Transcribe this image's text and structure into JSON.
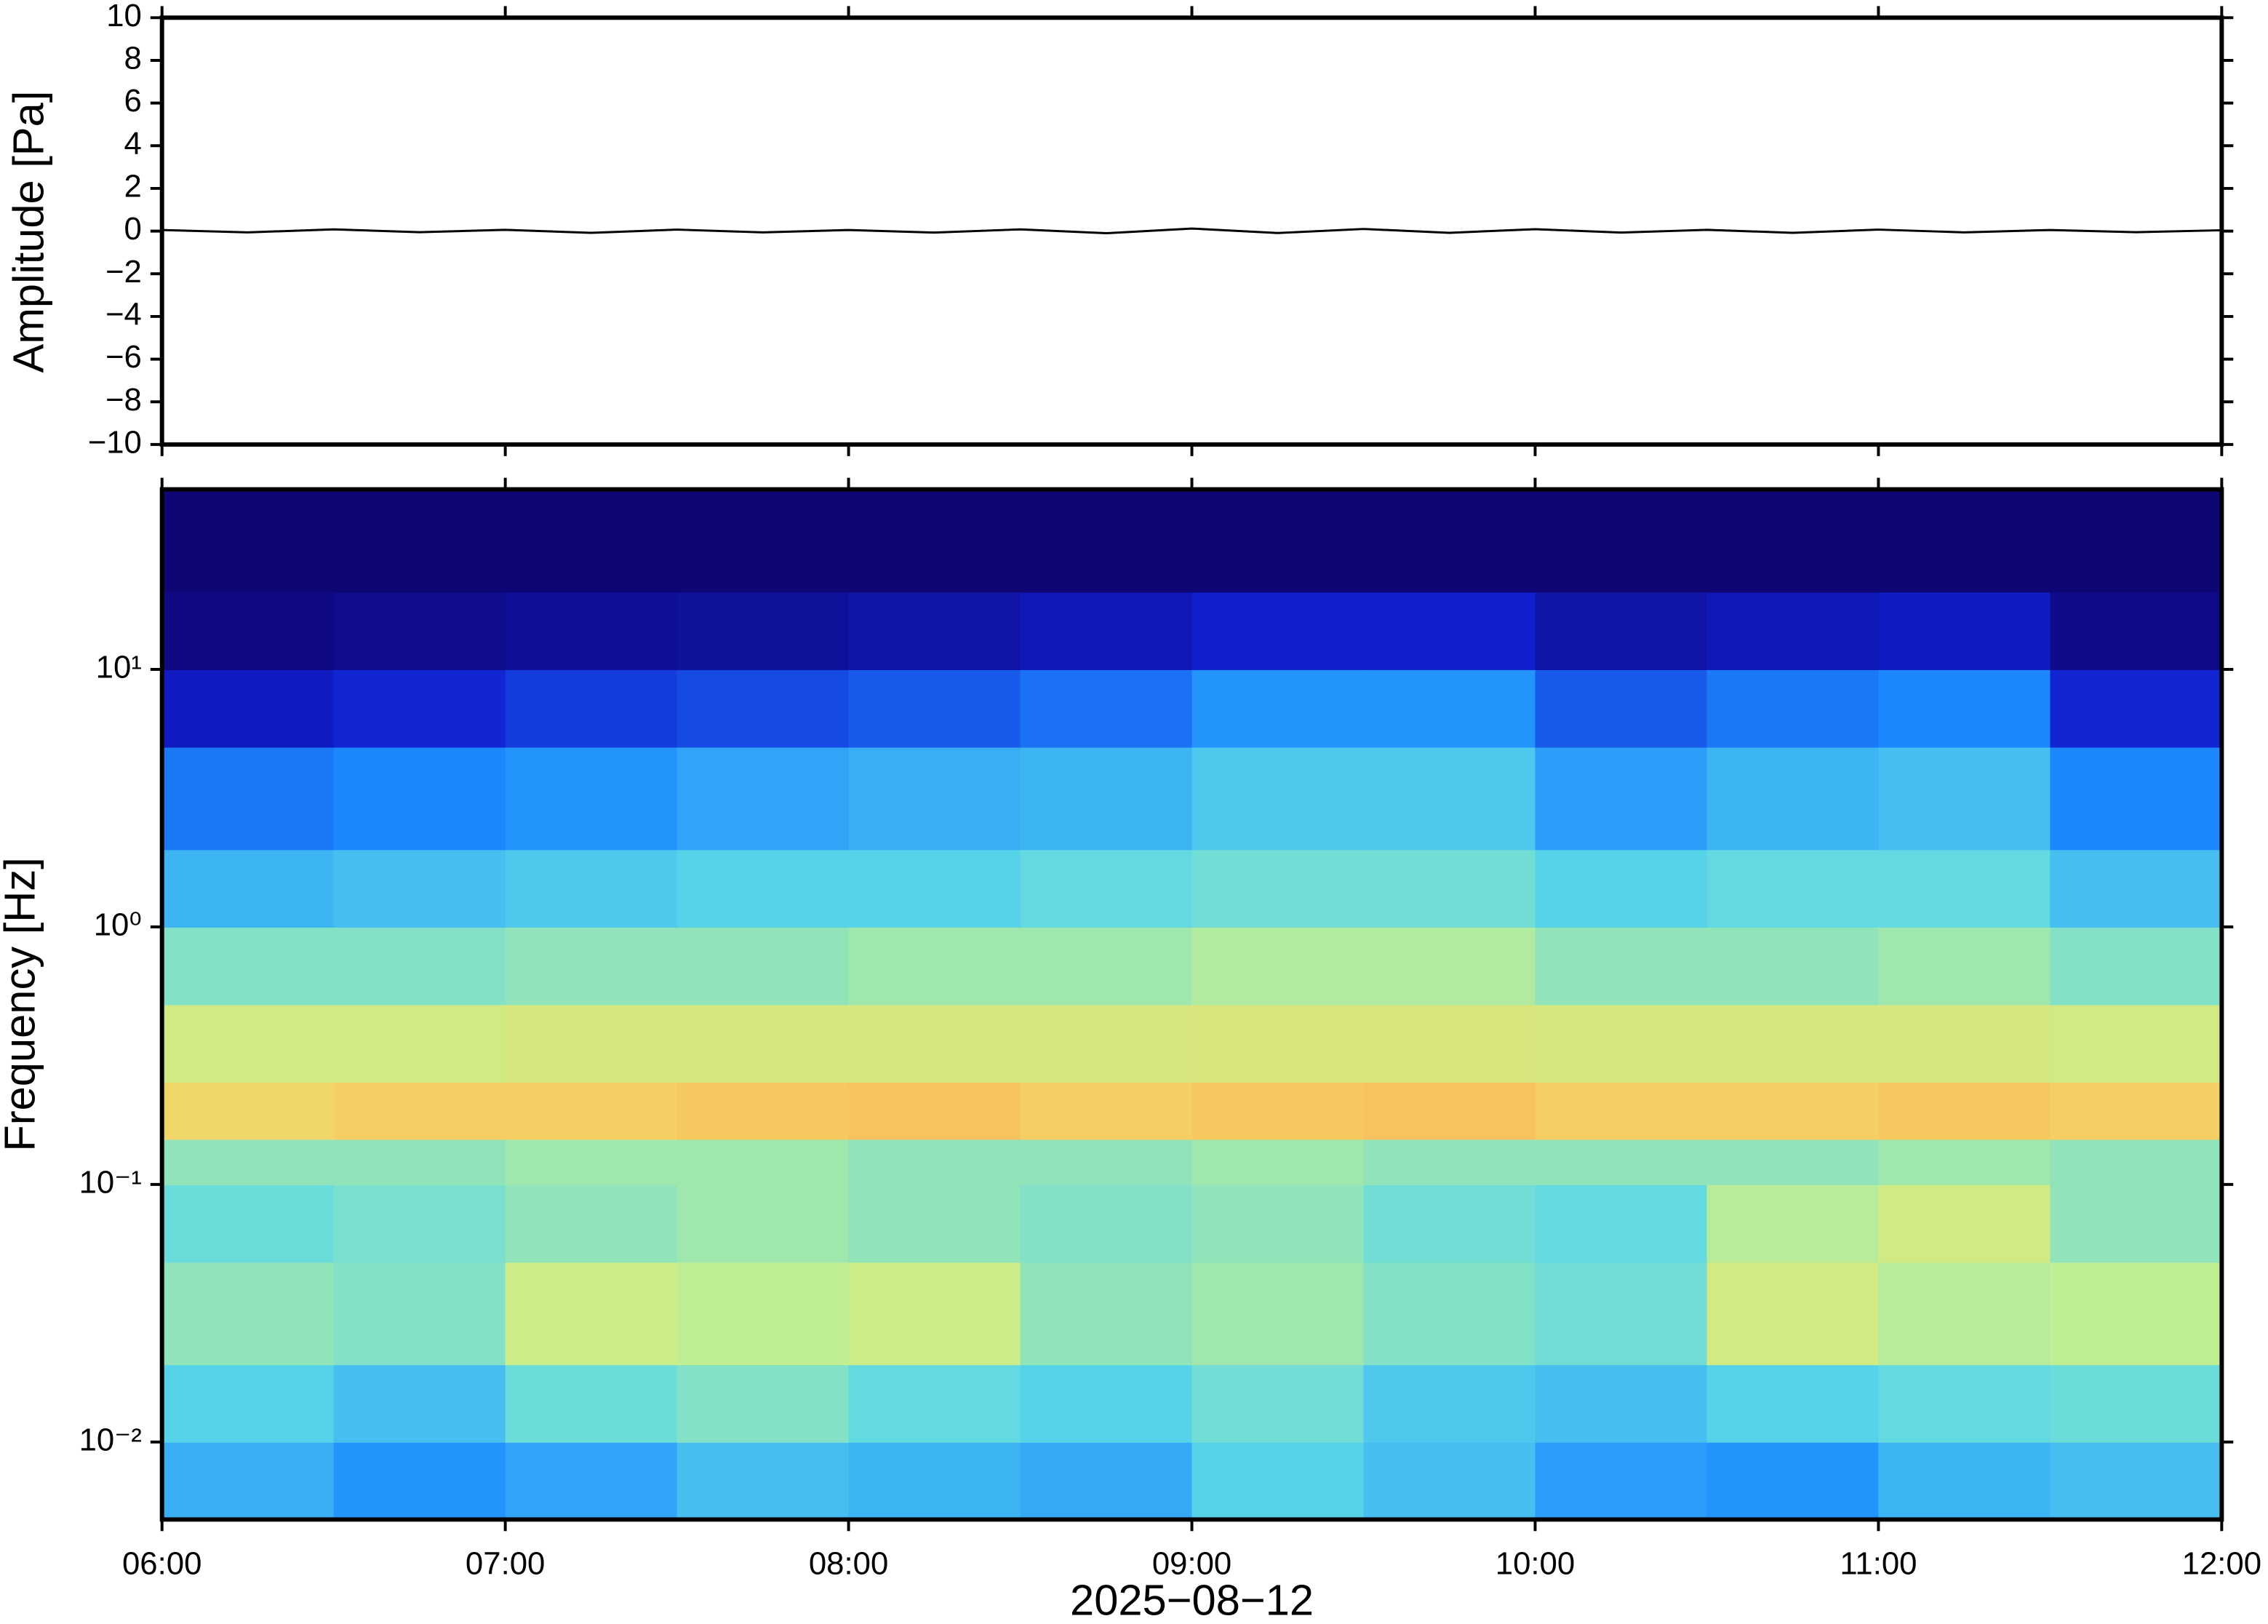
{
  "chart_data": [
    {
      "type": "line",
      "ylabel": "Amplitude [Pa]",
      "xlim": [
        6,
        12
      ],
      "xticks": [
        6,
        7,
        8,
        9,
        10,
        11,
        12
      ],
      "ylim": [
        -10,
        10
      ],
      "yticks": [
        {
          "value": -10,
          "label": "−10"
        },
        {
          "value": -8,
          "label": "−8"
        },
        {
          "value": -6,
          "label": "−6"
        },
        {
          "value": -4,
          "label": "−4"
        },
        {
          "value": -2,
          "label": "−2"
        },
        0,
        2,
        4,
        6,
        8,
        10
      ],
      "color": "#000000",
      "x": [
        6,
        6.25,
        6.5,
        6.75,
        7,
        7.25,
        7.5,
        7.75,
        8,
        8.25,
        8.5,
        8.75,
        9,
        9.25,
        9.5,
        9.75,
        10,
        10.25,
        10.5,
        10.75,
        11,
        11.25,
        11.5,
        11.75,
        12
      ],
      "values": [
        0.05,
        -0.06,
        0.08,
        -0.05,
        0.06,
        -0.08,
        0.07,
        -0.06,
        0.05,
        -0.07,
        0.08,
        -0.1,
        0.12,
        -0.09,
        0.1,
        -0.08,
        0.09,
        -0.07,
        0.06,
        -0.08,
        0.07,
        -0.06,
        0.05,
        -0.05,
        0.04
      ]
    },
    {
      "type": "heatmap",
      "ylabel": "Frequency [Hz]",
      "xlabel": "2025−08−12",
      "xlim": [
        6,
        12
      ],
      "xticks": [
        {
          "value": 6,
          "label": "06:00"
        },
        {
          "value": 7,
          "label": "07:00"
        },
        {
          "value": 8,
          "label": "08:00"
        },
        {
          "value": 9,
          "label": "09:00"
        },
        {
          "value": 10,
          "label": "10:00"
        },
        {
          "value": 11,
          "label": "11:00"
        },
        {
          "value": 12,
          "label": "12:00"
        }
      ],
      "ylim": [
        0.005,
        50
      ],
      "log_y": true,
      "yticks": [
        {
          "value": 0.01,
          "label": "10⁻²"
        },
        {
          "value": 0.1,
          "label": "10⁻¹"
        },
        {
          "value": 1,
          "label": "10⁰"
        },
        {
          "value": 10,
          "label": "10¹"
        }
      ],
      "x_bins": [
        6,
        6.5,
        7,
        7.5,
        8,
        8.5,
        9,
        9.5,
        10,
        10.5,
        11,
        11.5,
        12
      ],
      "y_bins": [
        0.005,
        0.01,
        0.02,
        0.05,
        0.1,
        0.15,
        0.25,
        0.5,
        1,
        2,
        5,
        10,
        20,
        50
      ],
      "zlim": [
        0,
        1
      ],
      "colormap": [
        "#0f0675",
        "#1020d0",
        "#1e8cff",
        "#5ad8e8",
        "#c8f08c",
        "#f5d264",
        "#ff8040",
        "#d01010"
      ],
      "z": [
        [
          0.35,
          0.3,
          0.33,
          0.38,
          0.36,
          0.34,
          0.42,
          0.38,
          0.32,
          0.3,
          0.36,
          0.38
        ],
        [
          0.42,
          0.38,
          0.45,
          0.48,
          0.44,
          0.42,
          0.46,
          0.4,
          0.38,
          0.42,
          0.44,
          0.45
        ],
        [
          0.5,
          0.48,
          0.58,
          0.56,
          0.58,
          0.5,
          0.52,
          0.48,
          0.46,
          0.6,
          0.55,
          0.56
        ],
        [
          0.45,
          0.47,
          0.5,
          0.52,
          0.5,
          0.48,
          0.5,
          0.46,
          0.44,
          0.55,
          0.6,
          0.5
        ],
        [
          0.5,
          0.5,
          0.52,
          0.52,
          0.5,
          0.5,
          0.52,
          0.5,
          0.5,
          0.5,
          0.52,
          0.5
        ],
        [
          0.7,
          0.72,
          0.72,
          0.73,
          0.74,
          0.72,
          0.73,
          0.74,
          0.72,
          0.72,
          0.73,
          0.72
        ],
        [
          0.6,
          0.6,
          0.62,
          0.62,
          0.62,
          0.62,
          0.63,
          0.63,
          0.62,
          0.62,
          0.62,
          0.6
        ],
        [
          0.48,
          0.48,
          0.5,
          0.5,
          0.52,
          0.52,
          0.54,
          0.54,
          0.5,
          0.5,
          0.52,
          0.48
        ],
        [
          0.36,
          0.38,
          0.4,
          0.42,
          0.42,
          0.44,
          0.46,
          0.46,
          0.42,
          0.44,
          0.44,
          0.38
        ],
        [
          0.26,
          0.28,
          0.3,
          0.33,
          0.35,
          0.36,
          0.4,
          0.4,
          0.32,
          0.36,
          0.38,
          0.28
        ],
        [
          0.12,
          0.15,
          0.18,
          0.2,
          0.22,
          0.25,
          0.3,
          0.3,
          0.22,
          0.26,
          0.28,
          0.15
        ],
        [
          0.02,
          0.04,
          0.05,
          0.06,
          0.08,
          0.1,
          0.14,
          0.14,
          0.08,
          0.1,
          0.12,
          0.03
        ],
        [
          0,
          0,
          0,
          0,
          0,
          0,
          0,
          0,
          0,
          0,
          0,
          0
        ]
      ]
    }
  ]
}
